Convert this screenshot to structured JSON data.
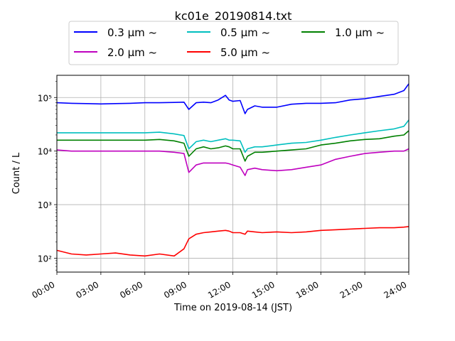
{
  "chart_data": {
    "type": "line",
    "title": "kc01e_20190814.txt",
    "xlabel": "Time on 2019-08-14 (JST)",
    "ylabel": "Count / L",
    "yscale": "log",
    "ylim": [
      55,
      260000
    ],
    "xlim": [
      "2019-08-14 00:00",
      "2019-08-15 00:00"
    ],
    "grid": true,
    "legend_position": "top-center",
    "x_ticks": [
      "00:00",
      "03:00",
      "06:00",
      "09:00",
      "12:00",
      "15:00",
      "18:00",
      "21:00",
      "24:00"
    ],
    "y_ticks": [
      {
        "value": 100,
        "label": "10²"
      },
      {
        "value": 1000,
        "label": "10³"
      },
      {
        "value": 10000,
        "label": "10⁴"
      },
      {
        "value": 100000,
        "label": "10⁵"
      }
    ],
    "x": [
      "00:00",
      "01:00",
      "02:00",
      "03:00",
      "04:00",
      "05:00",
      "06:00",
      "07:00",
      "08:00",
      "08:40",
      "09:00",
      "09:30",
      "10:00",
      "10:30",
      "11:00",
      "11:30",
      "11:45",
      "12:00",
      "12:30",
      "12:50",
      "13:00",
      "13:30",
      "14:00",
      "15:00",
      "16:00",
      "17:00",
      "18:00",
      "19:00",
      "20:00",
      "21:00",
      "22:00",
      "23:00",
      "23:40",
      "24:00"
    ],
    "series": [
      {
        "name": "0.3 μm ~",
        "color": "#0000ff",
        "values": [
          80000,
          78000,
          77000,
          76000,
          77000,
          78000,
          80000,
          80000,
          81000,
          82000,
          60000,
          80000,
          82000,
          80000,
          90000,
          110000,
          90000,
          85000,
          88000,
          50000,
          60000,
          70000,
          66000,
          66000,
          75000,
          78000,
          78000,
          80000,
          90000,
          95000,
          105000,
          115000,
          135000,
          180000
        ]
      },
      {
        "name": "0.5 μm ~",
        "color": "#00bfbf",
        "values": [
          22000,
          22000,
          22000,
          22000,
          22000,
          22000,
          22000,
          22500,
          21000,
          19500,
          11000,
          15000,
          16000,
          15000,
          16000,
          17000,
          16000,
          16000,
          15500,
          9500,
          11000,
          12000,
          12000,
          13000,
          14000,
          14500,
          16000,
          18000,
          20000,
          22000,
          24000,
          26000,
          29000,
          38000
        ]
      },
      {
        "name": "1.0 μm ~",
        "color": "#008000",
        "values": [
          16000,
          16000,
          16000,
          16000,
          16000,
          16000,
          16000,
          16500,
          15500,
          14000,
          8000,
          11000,
          12000,
          11000,
          11500,
          12500,
          12000,
          11000,
          11000,
          6500,
          8000,
          9500,
          9500,
          10000,
          10500,
          11000,
          13000,
          14000,
          15500,
          16500,
          17000,
          19000,
          20000,
          24000
        ]
      },
      {
        "name": "2.0 μm ~",
        "color": "#bf00bf",
        "values": [
          10500,
          10000,
          10000,
          10000,
          10000,
          10000,
          10000,
          10000,
          9500,
          9000,
          4000,
          5500,
          6000,
          6000,
          6000,
          6000,
          5800,
          5500,
          5000,
          3500,
          4500,
          4800,
          4500,
          4300,
          4500,
          5000,
          5500,
          7000,
          8000,
          9000,
          9500,
          10000,
          10000,
          11000
        ]
      },
      {
        "name": "5.0 μm ~",
        "color": "#ff0000",
        "values": [
          140,
          120,
          115,
          120,
          125,
          115,
          110,
          120,
          110,
          150,
          230,
          280,
          300,
          310,
          320,
          330,
          320,
          300,
          300,
          280,
          320,
          310,
          300,
          310,
          300,
          310,
          330,
          340,
          350,
          360,
          370,
          370,
          380,
          390
        ]
      }
    ]
  }
}
